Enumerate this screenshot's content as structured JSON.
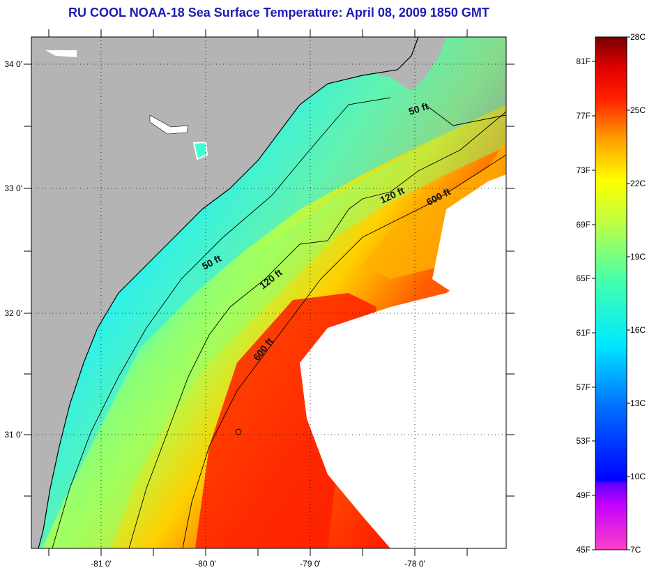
{
  "title": "RU COOL  NOAA-18  Sea Surface Temperature:  April 08, 2009 1850 GMT",
  "colors": {
    "title": "#1c1cb4",
    "land": "#b4b4b4",
    "no_data": "#ffffff",
    "coastline": "#000000"
  },
  "map": {
    "lon_labels": [
      "-81 0'",
      "-80 0'",
      "-79 0'",
      "-78 0'"
    ],
    "lat_labels": [
      "34 0'",
      "33 0'",
      "32 0'",
      "31 0'"
    ],
    "contour_labels": [
      {
        "text": "50 ft"
      },
      {
        "text": "50 ft"
      },
      {
        "text": "120 ft"
      },
      {
        "text": "120 ft"
      },
      {
        "text": "600 ft"
      },
      {
        "text": "600 ft"
      }
    ]
  },
  "colorbar": {
    "fahrenheit_labels": [
      "81F",
      "77F",
      "73F",
      "69F",
      "65F",
      "61F",
      "57F",
      "53F",
      "49F",
      "45F"
    ],
    "celsius_labels": [
      "28C",
      "25C",
      "22C",
      "19C",
      "16C",
      "13C",
      "10C",
      "7C"
    ]
  }
}
